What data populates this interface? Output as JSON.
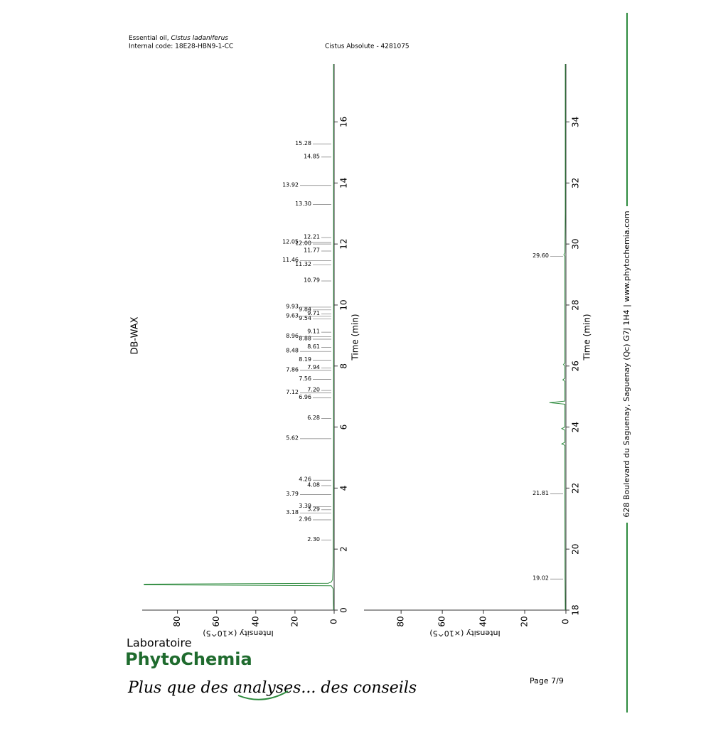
{
  "header": {
    "title_prefix": "Essential oil, ",
    "title_species": "Cistus ladaniferus",
    "internal_code": "Internal code: 18E28-HBN9-1-CC",
    "sample": "Cistus Absolute - 4281075"
  },
  "column_label": "DB-WAX",
  "chart_data": [
    {
      "type": "line",
      "x_label": "Time (min)",
      "y_label": "Intensity (×10^5)",
      "color": "#2e8b3e",
      "xlim": [
        0,
        17.9
      ],
      "xticks": [
        0,
        2,
        4,
        6,
        8,
        10,
        12,
        14,
        16
      ],
      "ylim": [
        0,
        98
      ],
      "yticks": [
        0,
        20,
        40,
        60,
        80
      ],
      "x": [
        0,
        0.7,
        0.8,
        0.83,
        0.85,
        0.88,
        0.92,
        1.0,
        1.5,
        3,
        6,
        9,
        12,
        15,
        17.9
      ],
      "values": [
        0.3,
        0.5,
        1.5,
        97,
        97,
        3,
        1.5,
        0.8,
        0.5,
        0.4,
        0.3,
        0.3,
        0.3,
        0.3,
        0.3
      ],
      "peaks": [
        {
          "value": 2.3,
          "label": "2.30"
        },
        {
          "value": 2.96,
          "label": "2.96"
        },
        {
          "value": 3.18,
          "label": "3.18"
        },
        {
          "value": 3.29,
          "label": "3.29"
        },
        {
          "value": 3.39,
          "label": "3.39"
        },
        {
          "value": 3.79,
          "label": "3.79"
        },
        {
          "value": 4.08,
          "label": "4.08"
        },
        {
          "value": 4.26,
          "label": "4.26"
        },
        {
          "value": 5.62,
          "label": "5.62"
        },
        {
          "value": 6.28,
          "label": "6.28"
        },
        {
          "value": 6.96,
          "label": "6.96"
        },
        {
          "value": 7.12,
          "label": "7.12"
        },
        {
          "value": 7.2,
          "label": "7.20"
        },
        {
          "value": 7.56,
          "label": "7.56"
        },
        {
          "value": 7.86,
          "label": "7.86"
        },
        {
          "value": 7.94,
          "label": "7.94"
        },
        {
          "value": 8.19,
          "label": "8.19"
        },
        {
          "value": 8.48,
          "label": "8.48"
        },
        {
          "value": 8.61,
          "label": "8.61"
        },
        {
          "value": 8.88,
          "label": "8.88"
        },
        {
          "value": 8.96,
          "label": "8.96"
        },
        {
          "value": 9.11,
          "label": "9.11"
        },
        {
          "value": 9.54,
          "label": "9.54"
        },
        {
          "value": 9.63,
          "label": "9.63"
        },
        {
          "value": 9.71,
          "label": "9.71"
        },
        {
          "value": 9.84,
          "label": "9.84"
        },
        {
          "value": 9.93,
          "label": "9.93"
        },
        {
          "value": 10.79,
          "label": "10.79"
        },
        {
          "value": 11.32,
          "label": "11.32"
        },
        {
          "value": 11.46,
          "label": "11.46"
        },
        {
          "value": 11.77,
          "label": "11.77"
        },
        {
          "value": 12,
          "label": "12.00"
        },
        {
          "value": 12.05,
          "label": "12.05"
        },
        {
          "value": 12.21,
          "label": "12.21"
        },
        {
          "value": 13.3,
          "label": "13.30"
        },
        {
          "value": 13.92,
          "label": "13.92"
        },
        {
          "value": 14.85,
          "label": "14.85"
        },
        {
          "value": 15.28,
          "label": "15.28"
        }
      ]
    },
    {
      "type": "line",
      "x_label": "Time (min)",
      "y_label": "Intensity (×10^5)",
      "color": "#2e8b3e",
      "xlim": [
        18,
        35.9
      ],
      "xticks": [
        18,
        20,
        22,
        24,
        26,
        28,
        30,
        32,
        34
      ],
      "ylim": [
        0,
        98
      ],
      "yticks": [
        0,
        20,
        40,
        60,
        80
      ],
      "x": [
        18,
        19,
        21.5,
        23.4,
        23.45,
        23.5,
        23.9,
        23.95,
        24,
        24.75,
        24.8,
        24.85,
        25.5,
        25.55,
        25.6,
        26,
        26.05,
        26.1,
        29.6,
        29.65,
        29.7,
        31,
        35.9
      ],
      "values": [
        0.3,
        0.4,
        0.5,
        0.5,
        2,
        0.5,
        0.5,
        2,
        0.5,
        0.5,
        8,
        0.5,
        0.5,
        1.5,
        0.5,
        0.5,
        1.2,
        0.5,
        0.5,
        1,
        0.5,
        0.3,
        0.3
      ],
      "peaks": [
        {
          "value": 19.02,
          "label": "19.02"
        },
        {
          "value": 21.81,
          "label": "21.81"
        },
        {
          "value": 29.6,
          "label": "29.60"
        }
      ]
    }
  ],
  "footer": {
    "lab": "Laboratoire",
    "brand": "PhytoChemia",
    "slogan": "Plus que des analyses... des conseils",
    "page": "Page 7/9",
    "address": "628 Boulevard du Saguenay, Saguenay (Qc)  G7J 1H4  |  www.phytochemia.com"
  }
}
